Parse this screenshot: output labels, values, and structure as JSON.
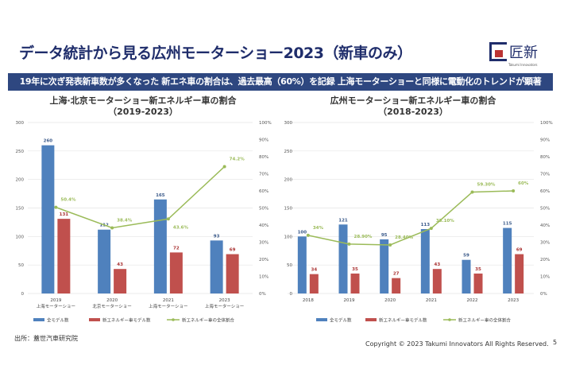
{
  "title": "データ統計から見る広州モーターショー2023（新車のみ）",
  "logo": {
    "text": "匠新",
    "sub": "Takumi Innovators"
  },
  "banner": "19年に次ぎ発表新車数が多くなった 新エネ車の割合は、過去最高（60%）を記録 上海モーターショーと同様に電動化のトレンドが顕著",
  "source": "出所：蓋世汽車研究院",
  "copyright": "Copyright © 2023 Takumi Innovators All Rights Reserved.",
  "page": "5",
  "colors": {
    "all": "#4f81bd",
    "nev": "#c0504d",
    "share": "#9bbb59"
  },
  "chart_data": [
    {
      "type": "bar",
      "title": "上海·北京モーターショー新エネルギー車の割合",
      "subtitle": "（2019-2023）",
      "categories": [
        [
          "2019",
          "上海モーターショー"
        ],
        [
          "2020",
          "北京モーターショー"
        ],
        [
          "2021",
          "上海モーターショー"
        ],
        [
          "2023",
          "上海モーターショー"
        ]
      ],
      "ylim": [
        0,
        300
      ],
      "yticks": [
        0,
        50,
        100,
        150,
        200,
        250,
        300
      ],
      "y2lim": [
        0,
        100
      ],
      "y2ticks": [
        "0%",
        "10%",
        "20%",
        "30%",
        "40%",
        "50%",
        "60%",
        "70%",
        "80%",
        "90%",
        "100%"
      ],
      "series": [
        {
          "name": "全モデル数",
          "type": "bar",
          "values": [
            260,
            112,
            165,
            93
          ]
        },
        {
          "name": "新エネルギー車モデル数",
          "type": "bar",
          "values": [
            131,
            43,
            72,
            69
          ]
        },
        {
          "name": "新エネルギー車の全体割合",
          "type": "line",
          "axis": "right",
          "values": [
            50.4,
            38.4,
            43.6,
            74.2
          ],
          "labels": [
            "50.4%",
            "38.4%",
            "43.6%",
            "74.2%"
          ]
        }
      ],
      "grid": true,
      "legend": "bottom"
    },
    {
      "type": "bar",
      "title": "広州モーターショー新エネルギー車の割合",
      "subtitle": "（2018-2023）",
      "categories": [
        [
          "2018"
        ],
        [
          "2019"
        ],
        [
          "2020"
        ],
        [
          "2021"
        ],
        [
          "2022"
        ],
        [
          "2023"
        ]
      ],
      "ylim": [
        0,
        300
      ],
      "yticks": [
        0,
        50,
        100,
        150,
        200,
        250,
        300
      ],
      "y2lim": [
        0,
        100
      ],
      "y2ticks": [
        "0%",
        "10%",
        "20%",
        "30%",
        "40%",
        "50%",
        "60%",
        "70%",
        "80%",
        "90%",
        "100%"
      ],
      "series": [
        {
          "name": "全モデル数",
          "type": "bar",
          "values": [
            100,
            121,
            95,
            113,
            59,
            115
          ]
        },
        {
          "name": "新エネルギー車モデル数",
          "type": "bar",
          "values": [
            34,
            35,
            27,
            43,
            35,
            69
          ]
        },
        {
          "name": "新エネルギー車の全体割合",
          "type": "line",
          "axis": "right",
          "values": [
            34,
            28.9,
            28.4,
            38.1,
            59.3,
            60
          ],
          "labels": [
            "34%",
            "28.90%",
            "28.40%",
            "38.10%",
            "59.30%",
            "60%"
          ]
        }
      ],
      "grid": true,
      "legend": "bottom"
    }
  ]
}
